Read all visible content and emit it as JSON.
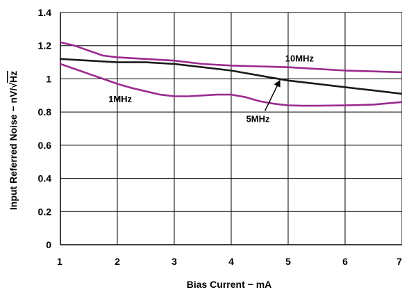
{
  "chart_data": {
    "type": "line",
    "xlabel": "Bias Current − mA",
    "ylabel_prefix": "Input Referred Noise − nV/√",
    "ylabel_overbar": "Hz",
    "xlim": [
      1,
      7
    ],
    "ylim": [
      0,
      1.4
    ],
    "grid": true,
    "x_ticks": [
      1,
      2,
      3,
      4,
      5,
      6,
      7
    ],
    "x_tick_labels": [
      "1",
      "2",
      "3",
      "4",
      "5",
      "6",
      "7"
    ],
    "y_ticks": [
      0,
      0.2,
      0.4,
      0.6,
      0.8,
      1,
      1.2,
      1.4
    ],
    "y_tick_labels": [
      "0",
      "0.2",
      "0.4",
      "0.6",
      "0.8",
      "1",
      "1.2",
      "1.4"
    ],
    "series": [
      {
        "name": "10MHz",
        "color": "#9b2a8e",
        "x": [
          1,
          1.25,
          1.5,
          1.75,
          2,
          2.5,
          3,
          3.5,
          4,
          4.5,
          5,
          5.5,
          6,
          6.5,
          7
        ],
        "y": [
          1.22,
          1.2,
          1.17,
          1.14,
          1.13,
          1.12,
          1.11,
          1.09,
          1.08,
          1.075,
          1.07,
          1.06,
          1.05,
          1.045,
          1.04
        ]
      },
      {
        "name": "5MHz",
        "color": "#1a1a1a",
        "x": [
          1,
          1.5,
          2,
          2.5,
          3,
          3.5,
          4,
          4.5,
          5,
          5.5,
          6,
          6.5,
          7
        ],
        "y": [
          1.12,
          1.11,
          1.1,
          1.1,
          1.09,
          1.07,
          1.05,
          1.02,
          0.99,
          0.97,
          0.95,
          0.93,
          0.91
        ]
      },
      {
        "name": "1MHz",
        "color": "#9b2a8e",
        "x": [
          1,
          1.25,
          1.5,
          1.75,
          2,
          2.25,
          2.5,
          2.75,
          3,
          3.25,
          3.5,
          3.75,
          4,
          4.25,
          4.5,
          4.75,
          5,
          5.25,
          5.5,
          6,
          6.5,
          7
        ],
        "y": [
          1.09,
          1.06,
          1.03,
          1.0,
          0.97,
          0.945,
          0.925,
          0.905,
          0.895,
          0.895,
          0.9,
          0.905,
          0.905,
          0.89,
          0.865,
          0.85,
          0.84,
          0.838,
          0.838,
          0.84,
          0.845,
          0.86
        ]
      }
    ],
    "annotations": [
      {
        "text": "10MHz",
        "x": 5.2,
        "y": 1.105
      },
      {
        "text": "1MHz",
        "x": 2.05,
        "y": 0.86
      },
      {
        "text": "5MHz",
        "x": 4.47,
        "y": 0.74,
        "arrow_to": [
          4.85,
          1.0
        ]
      }
    ]
  }
}
